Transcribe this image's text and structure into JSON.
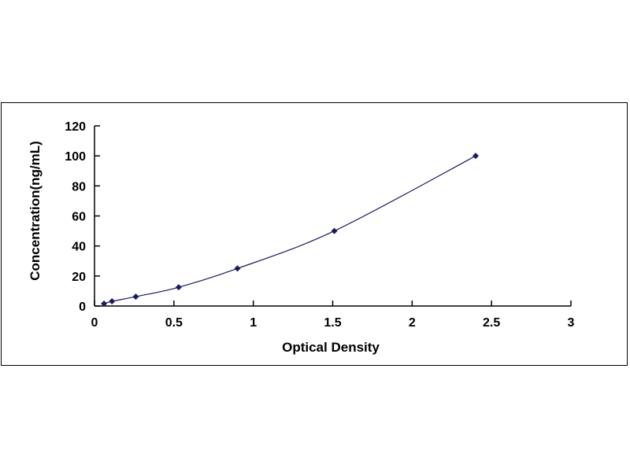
{
  "chart_data": {
    "type": "scatter",
    "title": "",
    "xlabel": "Optical Density",
    "ylabel": "Concentration(ng/mL)",
    "xlim": [
      0,
      3
    ],
    "ylim": [
      0,
      120
    ],
    "xticks": [
      "0",
      "0.5",
      "1",
      "1.5",
      "2",
      "2.5",
      "3"
    ],
    "yticks": [
      "0",
      "20",
      "40",
      "60",
      "80",
      "100",
      "120"
    ],
    "grid": false,
    "legend": "none",
    "trendline": "smooth curve through points",
    "marker": "diamond",
    "color": "#1a1a5e",
    "x": [
      0.06,
      0.11,
      0.26,
      0.53,
      0.9,
      1.51,
      2.4
    ],
    "y": [
      1.56,
      3.12,
      6.25,
      12.5,
      25,
      50,
      100
    ]
  }
}
